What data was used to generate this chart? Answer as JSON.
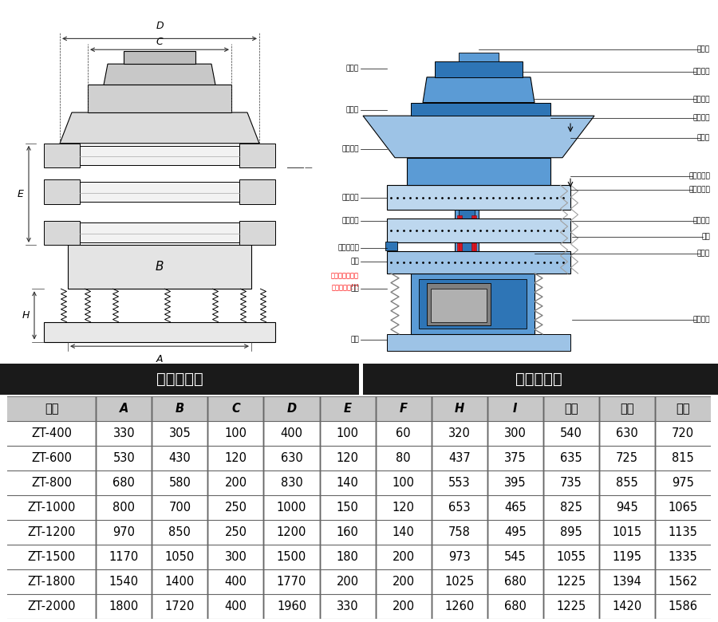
{
  "title_left": "外形尺寸图",
  "title_right": "一般结构图",
  "header": [
    "型号",
    "A",
    "B",
    "C",
    "D",
    "E",
    "F",
    "H",
    "I",
    "一层",
    "二层",
    "三层"
  ],
  "rows": [
    [
      "ZT-400",
      "330",
      "305",
      "100",
      "400",
      "100",
      "60",
      "320",
      "300",
      "540",
      "630",
      "720"
    ],
    [
      "ZT-600",
      "530",
      "430",
      "120",
      "630",
      "120",
      "80",
      "437",
      "375",
      "635",
      "725",
      "815"
    ],
    [
      "ZT-800",
      "680",
      "580",
      "200",
      "830",
      "140",
      "100",
      "553",
      "395",
      "735",
      "855",
      "975"
    ],
    [
      "ZT-1000",
      "800",
      "700",
      "250",
      "1000",
      "150",
      "120",
      "653",
      "465",
      "825",
      "945",
      "1065"
    ],
    [
      "ZT-1200",
      "970",
      "850",
      "250",
      "1200",
      "160",
      "140",
      "758",
      "495",
      "895",
      "1015",
      "1135"
    ],
    [
      "ZT-1500",
      "1170",
      "1050",
      "300",
      "1500",
      "180",
      "200",
      "973",
      "545",
      "1055",
      "1195",
      "1335"
    ],
    [
      "ZT-1800",
      "1540",
      "1400",
      "400",
      "1770",
      "200",
      "200",
      "1025",
      "680",
      "1225",
      "1394",
      "1562"
    ],
    [
      "ZT-2000",
      "1800",
      "1720",
      "400",
      "1960",
      "330",
      "200",
      "1260",
      "680",
      "1225",
      "1420",
      "1586"
    ]
  ],
  "header_bg": "#c8c8c8",
  "title_bar_bg": "#1a1a1a",
  "title_bar_text_color": "#ffffff",
  "table_border_color": "#666666",
  "fig_width": 9.0,
  "fig_height": 7.8
}
